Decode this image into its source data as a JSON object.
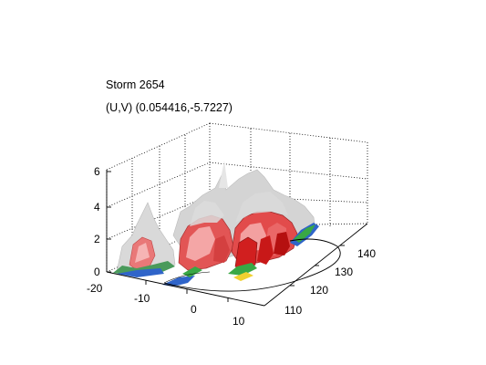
{
  "figure": {
    "title_line1": "Storm 2654",
    "title_line2": "(U,V) (0.054416,-5.7227)"
  },
  "axes": {
    "z_ticks": [
      "0",
      "2",
      "4",
      "6"
    ],
    "x_ticks": [
      "-20",
      "-10",
      "0",
      "10"
    ],
    "y_ticks": [
      "110",
      "120",
      "130",
      "140"
    ]
  },
  "surface": {
    "type": "3d-surface",
    "colors": {
      "high": "#e8e8e8",
      "mid_red": "#e23a3a",
      "pink": "#f2a0a0",
      "green": "#39a845",
      "blue": "#1f4fd1",
      "yellow": "#f0d030"
    }
  }
}
